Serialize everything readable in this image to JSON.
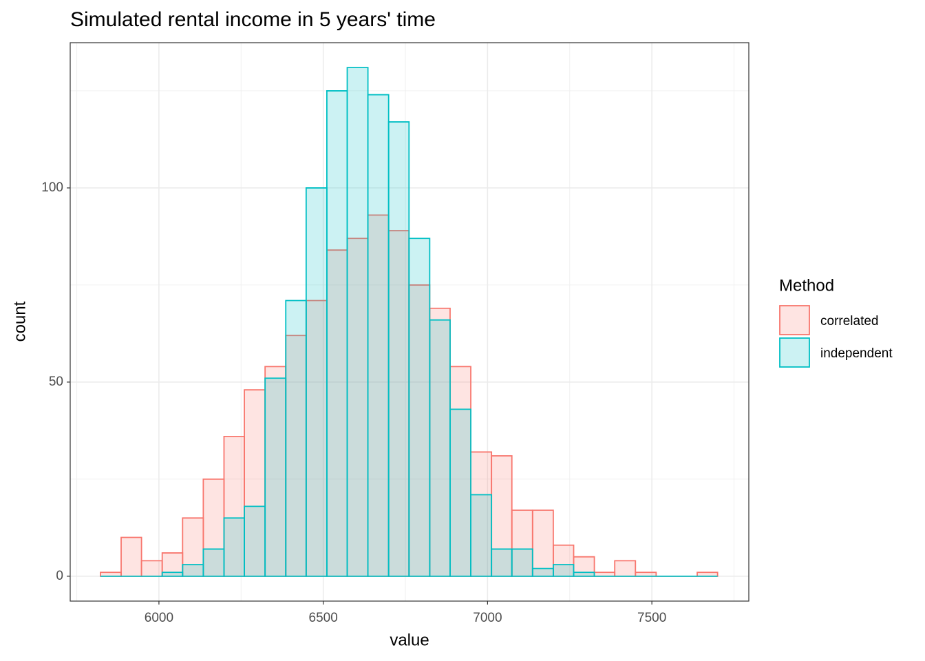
{
  "chart_data": {
    "type": "histogram",
    "title": "Simulated rental income in 5 years' time",
    "x_label": "value",
    "y_label": "count",
    "legend_title": "Method",
    "bins": [
      5822,
      5885,
      5947,
      6010,
      6072,
      6135,
      6198,
      6260,
      6323,
      6386,
      6448,
      6511,
      6573,
      6636,
      6699,
      6761,
      6824,
      6886,
      6949,
      7012,
      7074,
      7137,
      7200,
      7262,
      7325,
      7387,
      7450,
      7513,
      7575,
      7638,
      7700
    ],
    "series": [
      {
        "name": "correlated",
        "color": "#F8766D",
        "values": [
          1,
          10,
          4,
          6,
          15,
          25,
          36,
          48,
          54,
          62,
          71,
          84,
          87,
          93,
          89,
          75,
          69,
          54,
          32,
          31,
          17,
          17,
          8,
          5,
          1,
          4,
          1,
          0,
          0,
          1
        ]
      },
      {
        "name": "independent",
        "color": "#00BFC4",
        "values": [
          0,
          0,
          0,
          1,
          3,
          7,
          15,
          18,
          51,
          71,
          100,
          125,
          131,
          124,
          117,
          87,
          66,
          43,
          21,
          7,
          7,
          2,
          3,
          1,
          0,
          0,
          0,
          0,
          0,
          0
        ]
      }
    ],
    "xlim": [
      5730,
      7795
    ],
    "ylim": [
      -6.4,
      137.4
    ],
    "xticks": [
      6000,
      6500,
      7000,
      7500
    ],
    "yticks": [
      0,
      50,
      100
    ],
    "minor_xticks": [
      5750,
      6250,
      6750,
      7250,
      7750
    ],
    "minor_yticks": [
      25,
      75,
      125
    ],
    "grid": true,
    "legend_position": "right"
  }
}
